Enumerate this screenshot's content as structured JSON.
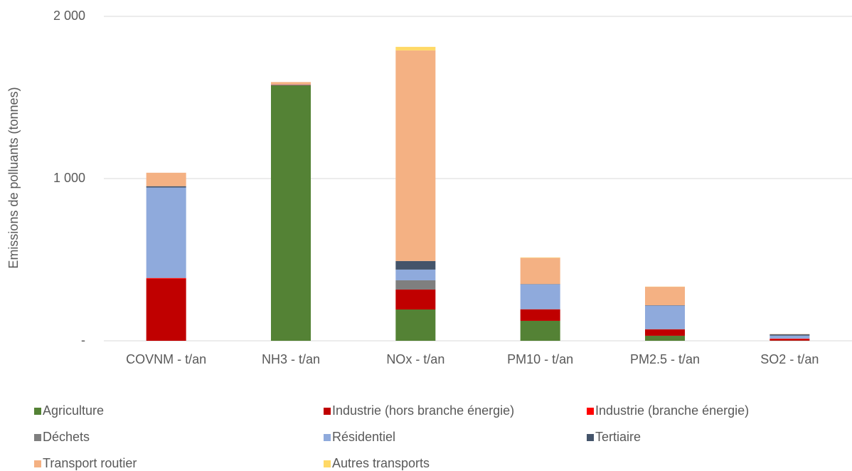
{
  "chart_data": {
    "type": "bar",
    "stacked": true,
    "y_label": "Emissions de polluants (tonnes)",
    "categories": [
      "COVNM - t/an",
      "NH3 - t/an",
      "NOx - t/an",
      "PM10 - t/an",
      "PM2.5 - t/an",
      "SO2 - t/an"
    ],
    "series": [
      {
        "name": "Agriculture",
        "color": "#548235",
        "values": [
          0,
          1575,
          193,
          123,
          31,
          1
        ]
      },
      {
        "name": "Industrie (hors branche énergie)",
        "color": "#c00000",
        "values": [
          382,
          2,
          123,
          70,
          39,
          8
        ]
      },
      {
        "name": "Industrie (branche énergie)",
        "color": "#ff0000",
        "values": [
          5,
          0,
          0,
          1,
          1,
          4
        ]
      },
      {
        "name": "Déchets",
        "color": "#7f7f7f",
        "values": [
          1,
          0,
          57,
          1,
          1,
          1
        ]
      },
      {
        "name": "Résidentiel",
        "color": "#8faadc",
        "values": [
          557,
          2,
          66,
          153,
          145,
          18
        ]
      },
      {
        "name": "Tertiaire",
        "color": "#44546a",
        "values": [
          8,
          1,
          53,
          2,
          2,
          8
        ]
      },
      {
        "name": "Transport routier",
        "color": "#f4b183",
        "values": [
          83,
          15,
          1298,
          162,
          114,
          2
        ]
      },
      {
        "name": "Autres transports",
        "color": "#ffd966",
        "values": [
          0,
          0,
          22,
          2,
          1,
          0
        ]
      }
    ],
    "ylim": [
      0,
      2000
    ],
    "yticks": [
      {
        "value": 0,
        "label": "-"
      },
      {
        "value": 1000,
        "label": "1 000"
      },
      {
        "value": 2000,
        "label": "2 000"
      }
    ],
    "grid": true,
    "legend": "bottom"
  }
}
